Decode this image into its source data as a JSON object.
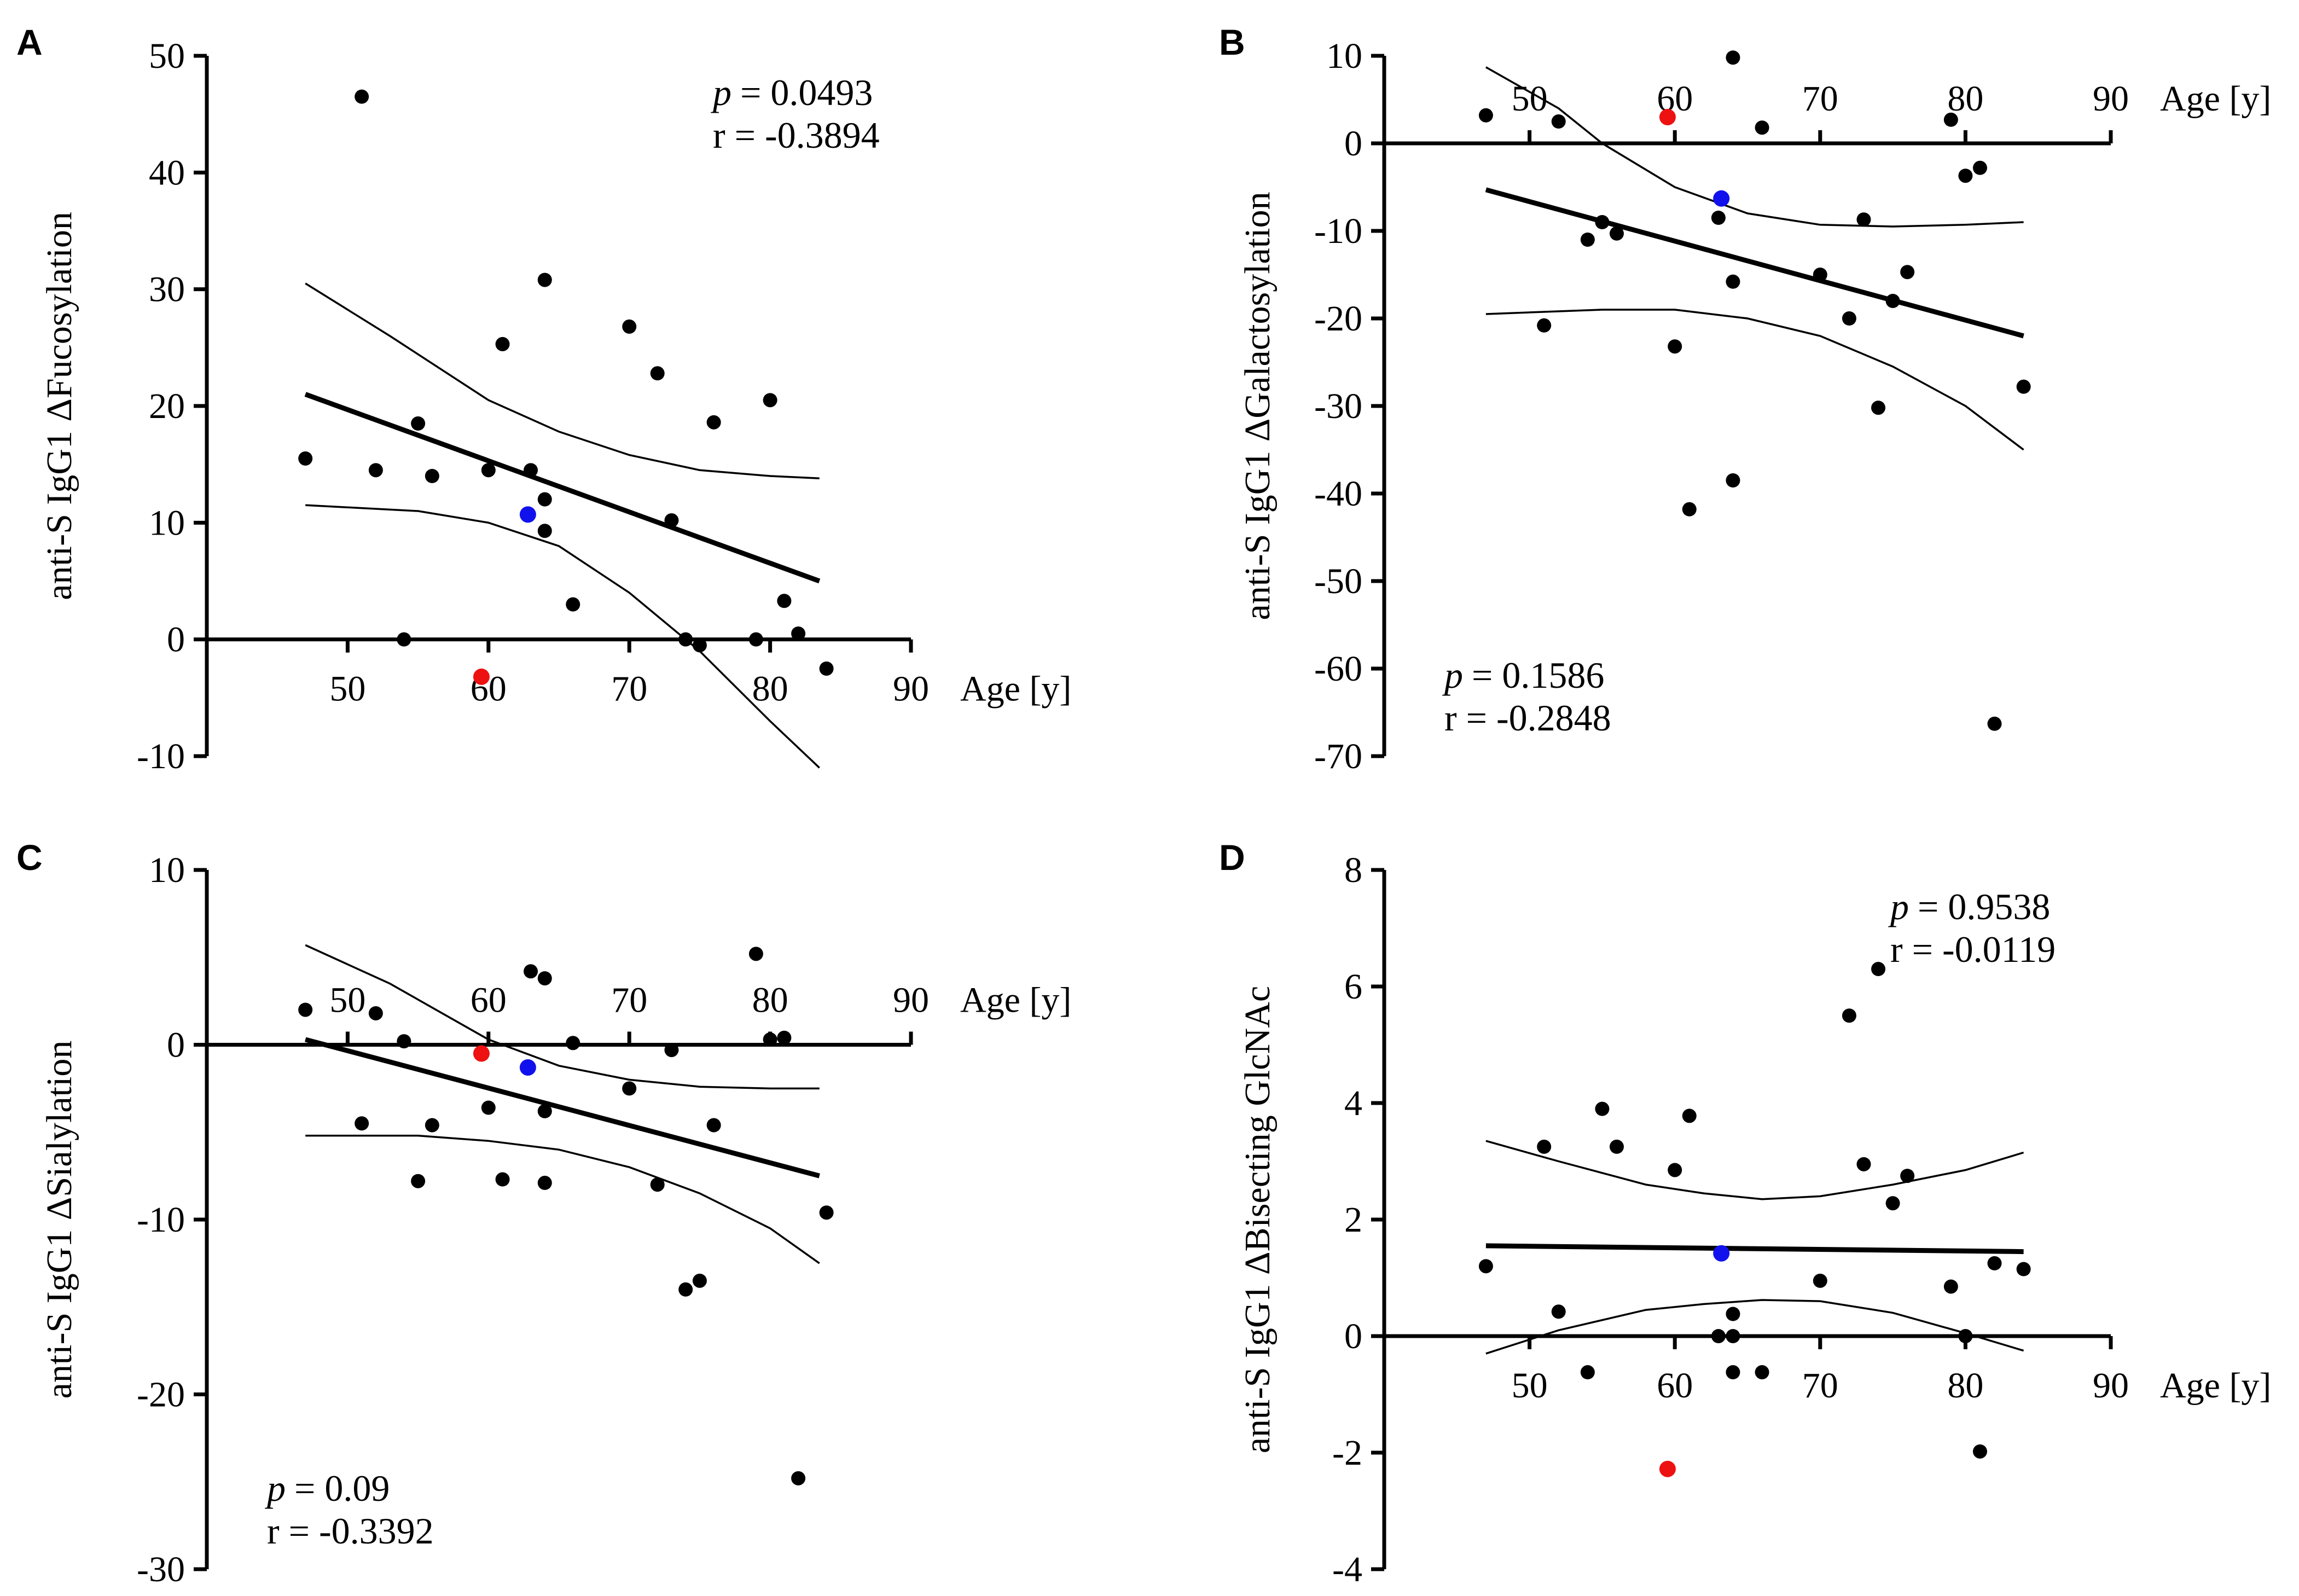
{
  "figure": {
    "colors": {
      "black": "#000000",
      "red": "#ee1111",
      "blue": "#1111ee"
    }
  },
  "chart_data": [
    {
      "type": "scatter",
      "panel": "A",
      "ylabel": "anti-S IgG1 ΔFucosylation",
      "xlabel": "Age [y]",
      "xlim": [
        40,
        90
      ],
      "ylim": [
        -10,
        50
      ],
      "x_ticks": [
        50,
        60,
        70,
        80,
        90
      ],
      "y_ticks": [
        -10,
        0,
        10,
        20,
        30,
        40,
        50
      ],
      "x_axis_at": 0,
      "x_label_pos": "below",
      "p_label": "p",
      "p_value": "= 0.0493",
      "r_label": "r = -0.3894",
      "stats_anchor": "top-right",
      "points": [
        {
          "x": 47,
          "y": 15.5
        },
        {
          "x": 51,
          "y": 46.5
        },
        {
          "x": 52,
          "y": 14.5
        },
        {
          "x": 54,
          "y": 0
        },
        {
          "x": 55,
          "y": 18.5
        },
        {
          "x": 56,
          "y": 14
        },
        {
          "x": 60,
          "y": 14.5
        },
        {
          "x": 61,
          "y": 25.3
        },
        {
          "x": 63,
          "y": 14.5
        },
        {
          "x": 64,
          "y": 12
        },
        {
          "x": 64,
          "y": 9.3
        },
        {
          "x": 64,
          "y": 30.8
        },
        {
          "x": 66,
          "y": 3
        },
        {
          "x": 70,
          "y": 26.8
        },
        {
          "x": 72,
          "y": 22.8
        },
        {
          "x": 73,
          "y": 10.2
        },
        {
          "x": 74,
          "y": 0
        },
        {
          "x": 75,
          "y": -0.5
        },
        {
          "x": 76,
          "y": 18.6
        },
        {
          "x": 79,
          "y": 0
        },
        {
          "x": 80,
          "y": 20.5
        },
        {
          "x": 81,
          "y": 3.3
        },
        {
          "x": 82,
          "y": 0.5
        },
        {
          "x": 84,
          "y": -2.5
        }
      ],
      "highlight_points": [
        {
          "x": 59.5,
          "y": -3.2,
          "color": "red"
        },
        {
          "x": 62.8,
          "y": 10.7,
          "color": "blue"
        }
      ],
      "regression_line": [
        [
          47,
          21
        ],
        [
          83.5,
          5
        ]
      ],
      "ci_upper": [
        [
          47,
          30.5
        ],
        [
          53,
          26
        ],
        [
          60,
          20.5
        ],
        [
          65,
          17.8
        ],
        [
          70,
          15.8
        ],
        [
          75,
          14.5
        ],
        [
          80,
          14
        ],
        [
          83.5,
          13.8
        ]
      ],
      "ci_lower": [
        [
          47,
          11.5
        ],
        [
          55,
          11
        ],
        [
          60,
          10
        ],
        [
          65,
          8
        ],
        [
          70,
          4
        ],
        [
          75,
          -1
        ],
        [
          80,
          -7
        ],
        [
          83.5,
          -11
        ]
      ]
    },
    {
      "type": "scatter",
      "panel": "B",
      "ylabel": "anti-S IgG1 ΔGalactosylation",
      "xlabel": "Age [y]",
      "xlim": [
        40,
        90
      ],
      "ylim": [
        -70,
        10
      ],
      "x_ticks": [
        50,
        60,
        70,
        80,
        90
      ],
      "y_ticks": [
        -70,
        -60,
        -50,
        -40,
        -30,
        -20,
        -10,
        0,
        10
      ],
      "x_axis_at": 0,
      "x_label_pos": "above",
      "p_label": "p",
      "p_value": "= 0.1586",
      "r_label": "r = -0.2848",
      "stats_anchor": "bottom-left",
      "points": [
        {
          "x": 47,
          "y": 3.2
        },
        {
          "x": 51,
          "y": -20.8
        },
        {
          "x": 52,
          "y": 2.5
        },
        {
          "x": 54,
          "y": -11
        },
        {
          "x": 55,
          "y": -9
        },
        {
          "x": 56,
          "y": -10.3
        },
        {
          "x": 60,
          "y": -23.2
        },
        {
          "x": 61,
          "y": -41.8
        },
        {
          "x": 63,
          "y": -8.5
        },
        {
          "x": 64,
          "y": 9.8
        },
        {
          "x": 64,
          "y": -15.8
        },
        {
          "x": 64,
          "y": -38.5
        },
        {
          "x": 66,
          "y": 1.8
        },
        {
          "x": 70,
          "y": -15
        },
        {
          "x": 72,
          "y": -20
        },
        {
          "x": 73,
          "y": -8.7
        },
        {
          "x": 74,
          "y": -30.2
        },
        {
          "x": 75,
          "y": -18
        },
        {
          "x": 76,
          "y": -14.7
        },
        {
          "x": 79,
          "y": 2.7
        },
        {
          "x": 80,
          "y": -3.7
        },
        {
          "x": 81,
          "y": -2.8
        },
        {
          "x": 82,
          "y": -66.3
        },
        {
          "x": 84,
          "y": -27.8
        }
      ],
      "highlight_points": [
        {
          "x": 59.5,
          "y": 3,
          "color": "red"
        },
        {
          "x": 63.2,
          "y": -6.3,
          "color": "blue"
        }
      ],
      "regression_line": [
        [
          47,
          -5.3
        ],
        [
          84,
          -22
        ]
      ],
      "ci_upper": [
        [
          47,
          8.7
        ],
        [
          52,
          4
        ],
        [
          55,
          0
        ],
        [
          60,
          -5
        ],
        [
          65,
          -8
        ],
        [
          70,
          -9.3
        ],
        [
          75,
          -9.5
        ],
        [
          80,
          -9.3
        ],
        [
          84,
          -9
        ]
      ],
      "ci_lower": [
        [
          47,
          -19.5
        ],
        [
          55,
          -19
        ],
        [
          60,
          -19
        ],
        [
          65,
          -20
        ],
        [
          70,
          -22
        ],
        [
          75,
          -25.5
        ],
        [
          80,
          -30
        ],
        [
          84,
          -35
        ]
      ]
    },
    {
      "type": "scatter",
      "panel": "C",
      "ylabel": "anti-S IgG1 ΔSialylation",
      "xlabel": "Age [y]",
      "xlim": [
        40,
        90
      ],
      "ylim": [
        -30,
        10
      ],
      "x_ticks": [
        50,
        60,
        70,
        80,
        90
      ],
      "y_ticks": [
        -30,
        -20,
        -10,
        0,
        10
      ],
      "x_axis_at": 0,
      "x_label_pos": "above",
      "p_label": "p",
      "p_value": "= 0.09",
      "r_label": "r = -0.3392",
      "stats_anchor": "bottom-left",
      "points": [
        {
          "x": 47,
          "y": 2
        },
        {
          "x": 51,
          "y": -4.5
        },
        {
          "x": 52,
          "y": 1.8
        },
        {
          "x": 54,
          "y": 0.2
        },
        {
          "x": 55,
          "y": -7.8
        },
        {
          "x": 56,
          "y": -4.6
        },
        {
          "x": 60,
          "y": -3.6
        },
        {
          "x": 61,
          "y": -7.7
        },
        {
          "x": 63,
          "y": 4.2
        },
        {
          "x": 64,
          "y": 3.8
        },
        {
          "x": 64,
          "y": -3.8
        },
        {
          "x": 64,
          "y": -7.9
        },
        {
          "x": 66,
          "y": 0.1
        },
        {
          "x": 70,
          "y": -2.5
        },
        {
          "x": 72,
          "y": -8
        },
        {
          "x": 73,
          "y": -0.3
        },
        {
          "x": 74,
          "y": -14
        },
        {
          "x": 75,
          "y": -13.5
        },
        {
          "x": 76,
          "y": -4.6
        },
        {
          "x": 79,
          "y": 5.2
        },
        {
          "x": 80,
          "y": 0.3
        },
        {
          "x": 81,
          "y": 0.4
        },
        {
          "x": 82,
          "y": -24.8
        },
        {
          "x": 84,
          "y": -9.6
        }
      ],
      "highlight_points": [
        {
          "x": 59.5,
          "y": -0.5,
          "color": "red"
        },
        {
          "x": 62.8,
          "y": -1.3,
          "color": "blue"
        }
      ],
      "regression_line": [
        [
          47,
          0.3
        ],
        [
          83.5,
          -7.5
        ]
      ],
      "ci_upper": [
        [
          47,
          5.7
        ],
        [
          53,
          3.5
        ],
        [
          60,
          0.3
        ],
        [
          65,
          -1.2
        ],
        [
          70,
          -2
        ],
        [
          75,
          -2.4
        ],
        [
          80,
          -2.5
        ],
        [
          83.5,
          -2.5
        ]
      ],
      "ci_lower": [
        [
          47,
          -5.2
        ],
        [
          55,
          -5.2
        ],
        [
          60,
          -5.5
        ],
        [
          65,
          -6
        ],
        [
          70,
          -7
        ],
        [
          75,
          -8.5
        ],
        [
          80,
          -10.5
        ],
        [
          83.5,
          -12.5
        ]
      ]
    },
    {
      "type": "scatter",
      "panel": "D",
      "ylabel": "anti-S IgG1 ΔBisecting GlcNAc",
      "xlabel": "Age [y]",
      "xlim": [
        40,
        90
      ],
      "ylim": [
        -4,
        8
      ],
      "x_ticks": [
        50,
        60,
        70,
        80,
        90
      ],
      "y_ticks": [
        -4,
        -2,
        0,
        2,
        4,
        6,
        8
      ],
      "x_axis_at": 0,
      "x_label_pos": "below",
      "p_label": "p",
      "p_value": "= 0.9538",
      "r_label": "r = -0.0119",
      "stats_anchor": "top-right",
      "points": [
        {
          "x": 47,
          "y": 1.2
        },
        {
          "x": 51,
          "y": 3.25
        },
        {
          "x": 52,
          "y": 0.42
        },
        {
          "x": 54,
          "y": -0.62
        },
        {
          "x": 55,
          "y": 3.9
        },
        {
          "x": 56,
          "y": 3.25
        },
        {
          "x": 60,
          "y": 2.85
        },
        {
          "x": 61,
          "y": 3.78
        },
        {
          "x": 63,
          "y": 0
        },
        {
          "x": 64,
          "y": 0.38
        },
        {
          "x": 64,
          "y": 0
        },
        {
          "x": 64,
          "y": -0.62
        },
        {
          "x": 66,
          "y": -0.62
        },
        {
          "x": 70,
          "y": 0.95
        },
        {
          "x": 72,
          "y": 5.5
        },
        {
          "x": 73,
          "y": 2.95
        },
        {
          "x": 74,
          "y": 6.3
        },
        {
          "x": 75,
          "y": 2.28
        },
        {
          "x": 76,
          "y": 2.75
        },
        {
          "x": 79,
          "y": 0.85
        },
        {
          "x": 80,
          "y": 0
        },
        {
          "x": 81,
          "y": -1.98
        },
        {
          "x": 82,
          "y": 1.25
        },
        {
          "x": 84,
          "y": 1.15
        }
      ],
      "highlight_points": [
        {
          "x": 59.5,
          "y": -2.28,
          "color": "red"
        },
        {
          "x": 63.2,
          "y": 1.42,
          "color": "blue"
        }
      ],
      "regression_line": [
        [
          47,
          1.55
        ],
        [
          84,
          1.45
        ]
      ],
      "ci_upper": [
        [
          47,
          3.35
        ],
        [
          52,
          3
        ],
        [
          58,
          2.6
        ],
        [
          62,
          2.45
        ],
        [
          66,
          2.35
        ],
        [
          70,
          2.4
        ],
        [
          75,
          2.6
        ],
        [
          80,
          2.85
        ],
        [
          84,
          3.15
        ]
      ],
      "ci_lower": [
        [
          47,
          -0.3
        ],
        [
          52,
          0.1
        ],
        [
          58,
          0.45
        ],
        [
          62,
          0.55
        ],
        [
          66,
          0.62
        ],
        [
          70,
          0.6
        ],
        [
          75,
          0.4
        ],
        [
          80,
          0.05
        ],
        [
          84,
          -0.25
        ]
      ]
    }
  ]
}
